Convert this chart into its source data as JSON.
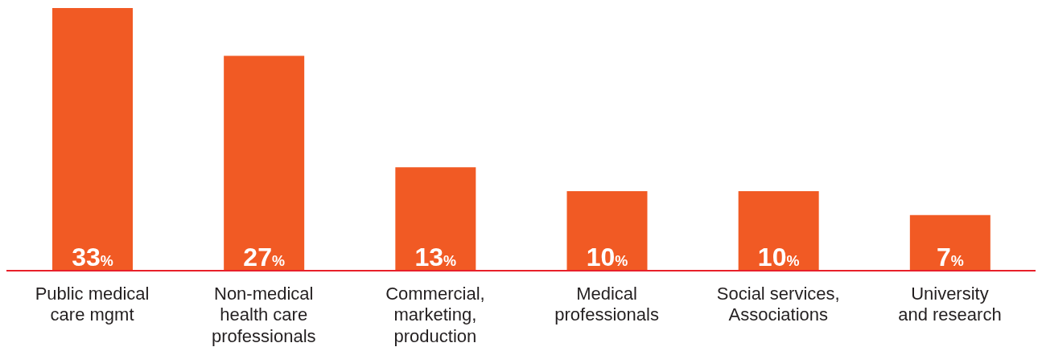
{
  "chart_data": {
    "type": "bar",
    "categories": [
      "Public medical\ncare mgmt",
      "Non-medical\nhealth care\nprofessionals",
      "Commercial,\nmarketing,\nproduction",
      "Medical\nprofessionals",
      "Social services,\nAssociations",
      "University\nand research"
    ],
    "values": [
      33,
      27,
      13,
      10,
      10,
      7
    ],
    "value_labels": [
      "33%",
      "27%",
      "13%",
      "10%",
      "10%",
      "7%"
    ],
    "color": "#f15a24",
    "grid": false,
    "legend": false
  }
}
